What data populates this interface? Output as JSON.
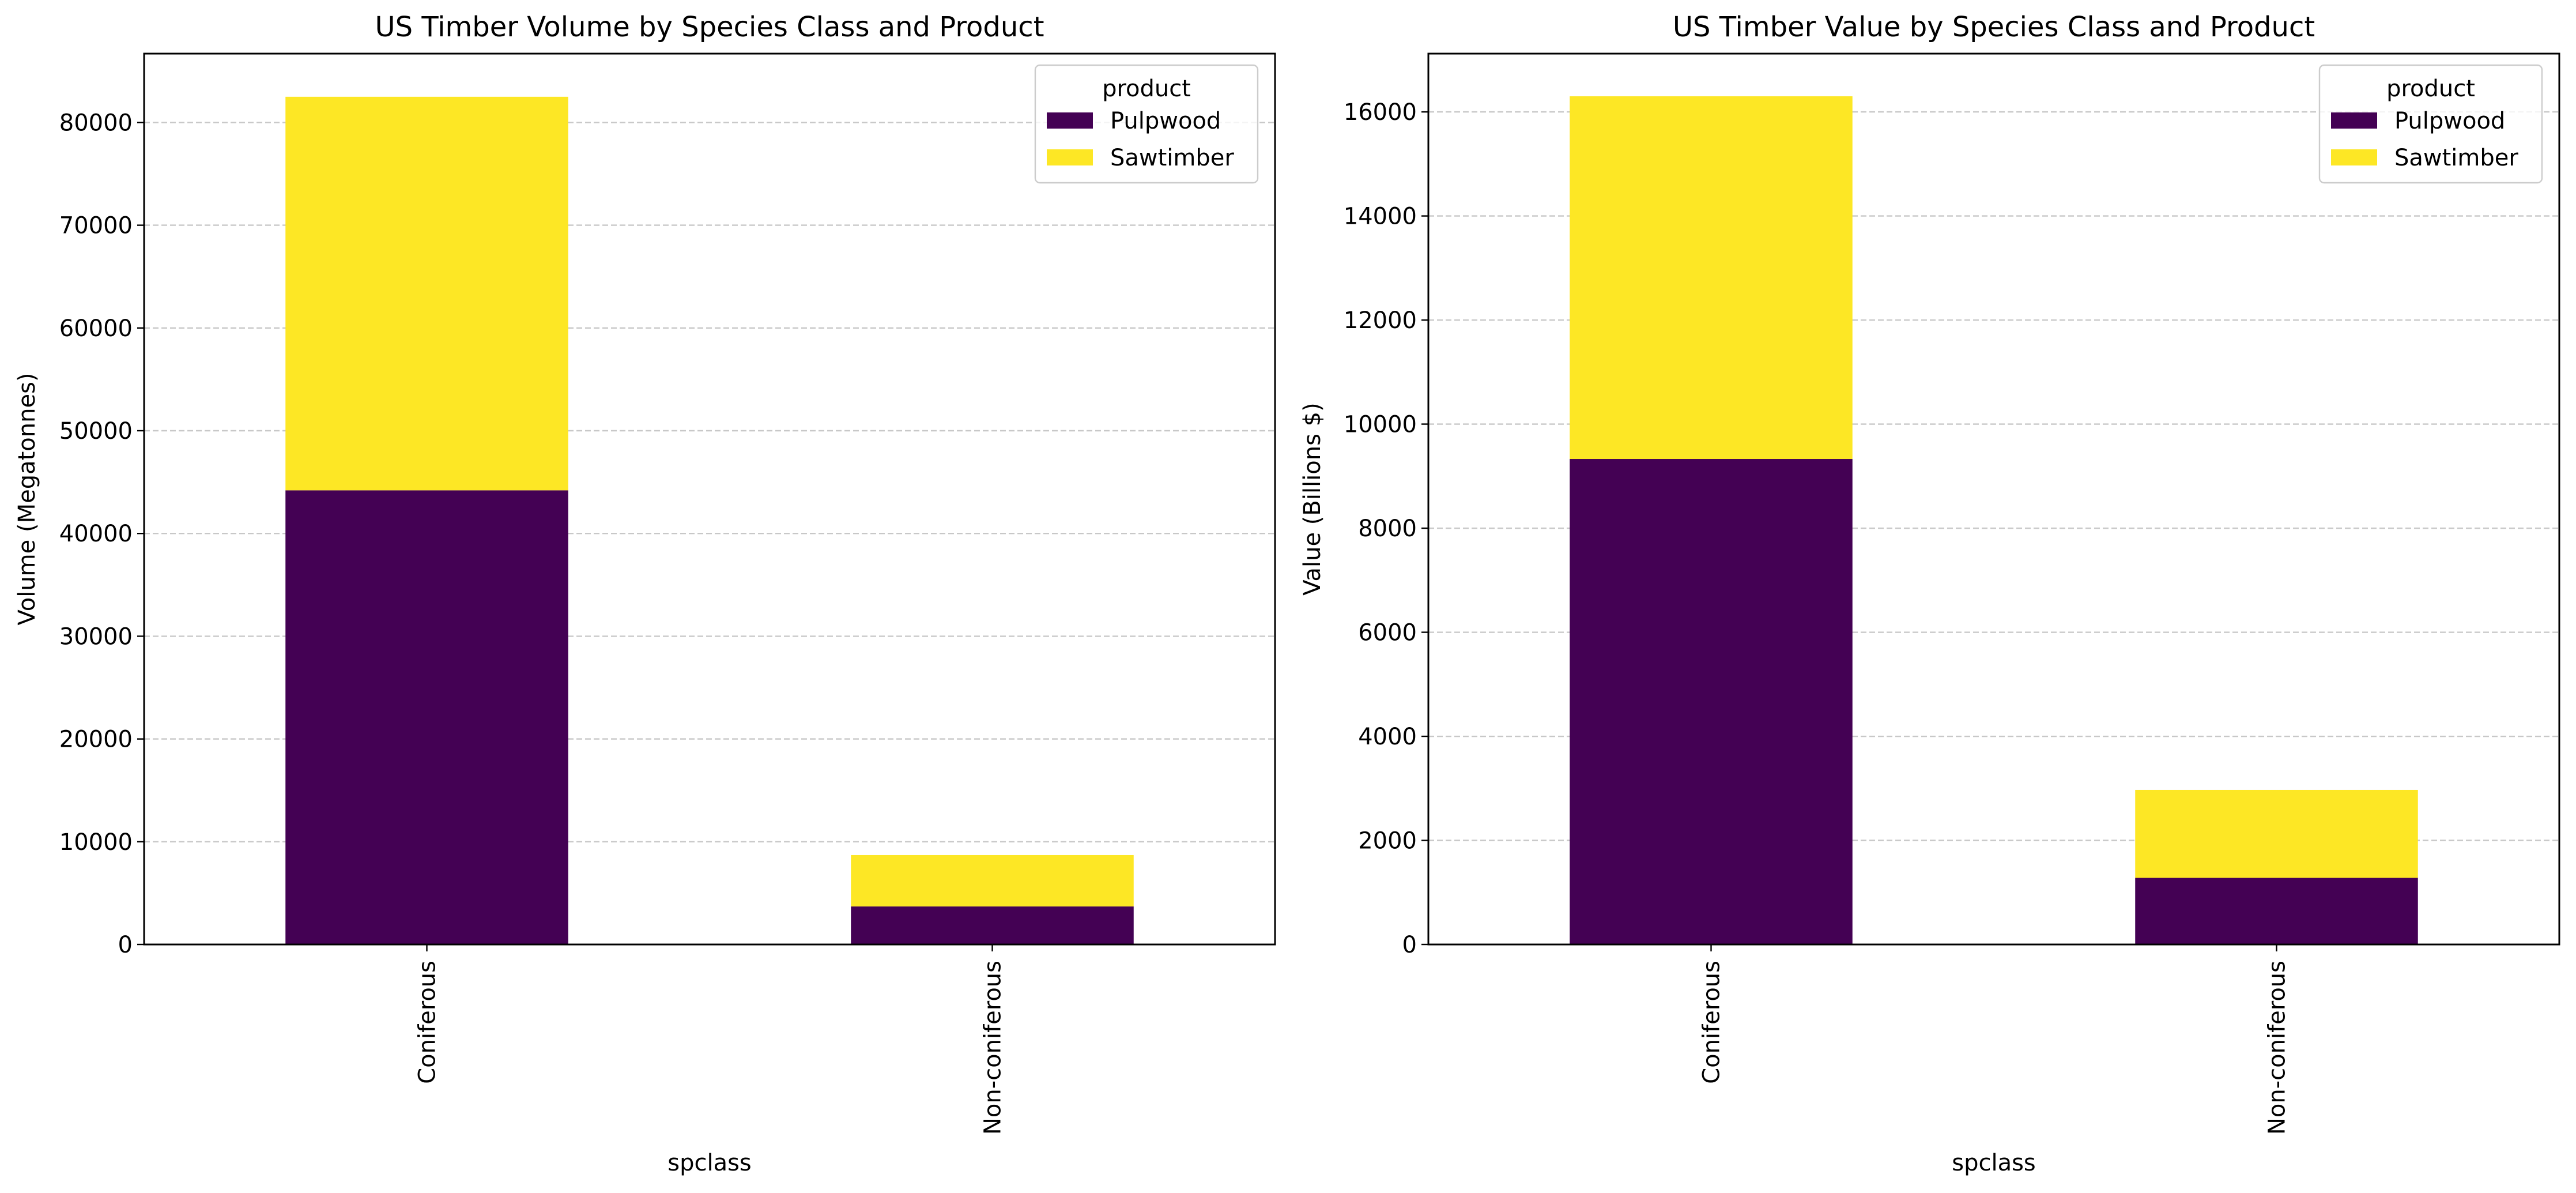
{
  "colors": {
    "pulpwood": "#440154",
    "sawtimber": "#fde725",
    "grid": "#b0b0b0",
    "axis": "#000000",
    "legend_border": "#cccccc"
  },
  "chart_data": [
    {
      "type": "bar",
      "stacked": true,
      "title": "US Timber Volume by Species Class and Product",
      "xlabel": "spclass",
      "ylabel": "Volume (Megatonnes)",
      "categories": [
        "Coniferous",
        "Non-coniferous"
      ],
      "series": [
        {
          "name": "Pulpwood",
          "values": [
            44200,
            3700
          ]
        },
        {
          "name": "Sawtimber",
          "values": [
            38300,
            5000
          ]
        }
      ],
      "ylim": [
        0,
        86700
      ],
      "yticks": [
        0,
        10000,
        20000,
        30000,
        40000,
        50000,
        60000,
        70000,
        80000
      ],
      "grid": "y-dashed",
      "legend": {
        "title": "product",
        "placement": "upper right"
      }
    },
    {
      "type": "bar",
      "stacked": true,
      "title": "US Timber Value by Species Class and Product",
      "xlabel": "spclass",
      "ylabel": "Value (Billions $)",
      "categories": [
        "Coniferous",
        "Non-coniferous"
      ],
      "series": [
        {
          "name": "Pulpwood",
          "values": [
            9330,
            1280
          ]
        },
        {
          "name": "Sawtimber",
          "values": [
            6970,
            1690
          ]
        }
      ],
      "ylim": [
        0,
        17120
      ],
      "yticks": [
        0,
        2000,
        4000,
        6000,
        8000,
        10000,
        12000,
        14000,
        16000
      ],
      "grid": "y-dashed",
      "legend": {
        "title": "product",
        "placement": "upper right"
      }
    }
  ]
}
